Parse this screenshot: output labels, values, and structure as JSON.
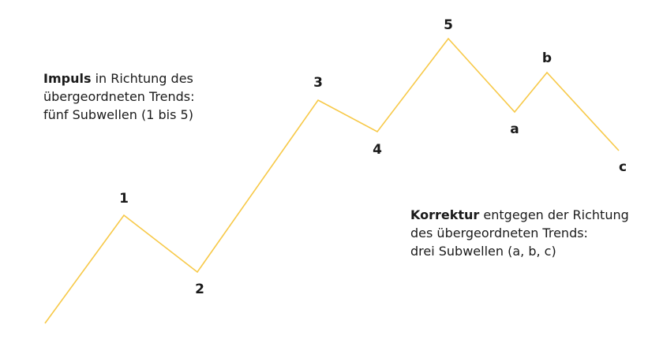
{
  "diagram": {
    "line_color": "#f7c948",
    "wave_labels": [
      "1",
      "2",
      "3",
      "4",
      "5",
      "a",
      "b",
      "c"
    ],
    "impulse_note": {
      "bold": "Impuls",
      "line1_rest": " in Richtung des",
      "line2": "übergeordneten Trends:",
      "line3": "fünf Subwellen (1 bis 5)"
    },
    "correction_note": {
      "bold": "Korrektur",
      "line1_rest": " entgegen der Richtung",
      "line2": "des übergeordneten Trends:",
      "line3": "drei Subwellen (a, b, c)"
    }
  }
}
